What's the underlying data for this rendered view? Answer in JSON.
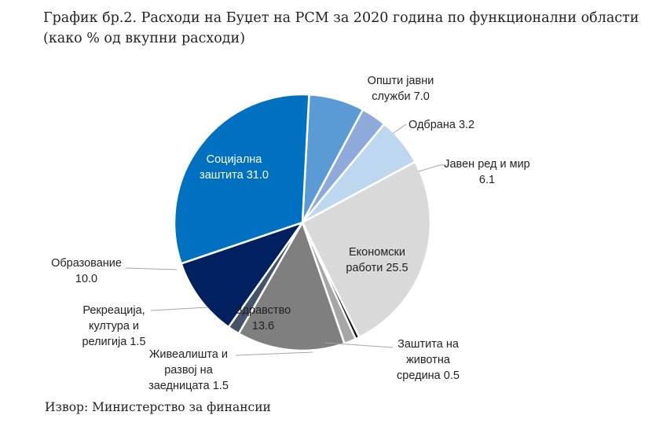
{
  "title_line1": "График бр.2. Расходи на Буџет на РСМ за 2020 година по функционални области",
  "title_line2": "(како % од вкупни расходи)",
  "source": "Извор: Министерство за финансии",
  "chart_data": {
    "type": "pie",
    "title": "График бр.2. Расходи на Буџет на РСМ за 2020 година по функционални области (како % од вкупни расходи)",
    "start": "clockwise from 12 o'clock (first slice begins just after top)",
    "slices": [
      {
        "label_lines": [
          "Општи јавни",
          "служби 7.0"
        ],
        "value": 7.0,
        "color": "#5b9bd5"
      },
      {
        "label_lines": [
          "Одбрана 3.2"
        ],
        "value": 3.2,
        "color": "#8eaadb"
      },
      {
        "label_lines": [
          "Јавен ред и мир",
          "6.1"
        ],
        "value": 6.1,
        "color": "#bdd7ee"
      },
      {
        "label_lines": [
          "Економски",
          "работи 25.5"
        ],
        "value": 25.5,
        "color": "#d9d9d9"
      },
      {
        "label_lines": [
          "Заштита на",
          "животна",
          "средина 0.5"
        ],
        "value": 0.5,
        "color": "#111111"
      },
      {
        "label_lines": [
          "Живеалишта и",
          "развој на",
          "заедницата 1.5"
        ],
        "value": 1.5,
        "color": "#a6a6a6"
      },
      {
        "label_lines": [
          "Здравство",
          "13.6"
        ],
        "value": 13.6,
        "color": "#7f7f7f"
      },
      {
        "label_lines": [
          "Рекреација,",
          "култура и",
          "религија 1.5"
        ],
        "value": 1.5,
        "color": "#44546a"
      },
      {
        "label_lines": [
          "Образование",
          "10.0"
        ],
        "value": 10.0,
        "color": "#002060"
      },
      {
        "label_lines": [
          "Социјална",
          "заштита 31.0"
        ],
        "value": 31.0,
        "color": "#0070c0"
      }
    ]
  }
}
